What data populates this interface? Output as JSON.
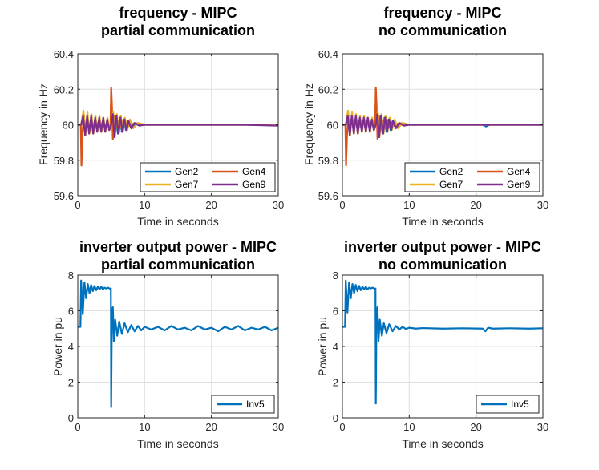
{
  "figure": {
    "background": "#ffffff"
  },
  "chart_data": [
    {
      "type": "line",
      "title": [
        "frequency - MIPC",
        "partial communication"
      ],
      "xlabel": "Time in seconds",
      "ylabel": "Frequency in Hz",
      "xlim": [
        0,
        30
      ],
      "ylim": [
        59.6,
        60.4
      ],
      "xticks": [
        0,
        10,
        20,
        30
      ],
      "yticks": [
        59.6,
        59.8,
        60,
        60.2,
        60.4
      ],
      "ytick_labels": [
        "59.6",
        "59.8",
        "60",
        "60.2",
        "60.4"
      ],
      "grid": true,
      "legend": {
        "location": "bottom-right",
        "columns": 2,
        "entries": [
          "Gen2",
          "Gen4",
          "Gen7",
          "Gen9"
        ]
      },
      "series": [
        {
          "name": "Gen2",
          "color": "#0072BD",
          "x": [
            0,
            0.5,
            0.8,
            1.1,
            1.4,
            1.7,
            2.0,
            2.3,
            2.6,
            2.9,
            3.2,
            3.5,
            3.8,
            4.1,
            4.4,
            4.7,
            5.0,
            5.2,
            5.4,
            5.7,
            6.0,
            6.3,
            6.6,
            6.9,
            7.2,
            7.5,
            8.0,
            9.0,
            10.0,
            12.0,
            15.0,
            20.0,
            25.0,
            30.0
          ],
          "values": [
            60,
            60,
            60.04,
            59.96,
            60.04,
            59.96,
            60.03,
            59.97,
            60.03,
            59.97,
            60.03,
            59.97,
            60.03,
            59.97,
            60.02,
            59.98,
            60,
            60.05,
            59.94,
            60.05,
            59.95,
            60.04,
            59.96,
            60.03,
            59.97,
            60.02,
            59.99,
            60.01,
            60,
            60,
            60,
            60,
            60,
            60
          ]
        },
        {
          "name": "Gen4",
          "color": "#D95319",
          "x": [
            0,
            0.45,
            0.55,
            0.7,
            0.9,
            1.1,
            1.4,
            1.7,
            2.0,
            2.5,
            3.0,
            4.0,
            4.9,
            5.0,
            5.1,
            5.25,
            5.4,
            5.6,
            5.9,
            6.3,
            6.8,
            7.5,
            8.5,
            10.0,
            15.0,
            20.0,
            25.0,
            30.0
          ],
          "values": [
            60,
            60,
            59.77,
            59.95,
            60.06,
            59.97,
            60.03,
            59.98,
            60.02,
            59.99,
            60.01,
            60,
            60,
            60.21,
            60.12,
            59.92,
            60.05,
            59.96,
            60.03,
            59.98,
            60.02,
            59.99,
            60.01,
            60,
            60,
            60,
            60,
            60
          ]
        },
        {
          "name": "Gen7",
          "color": "#EDB120",
          "x": [
            0,
            0.5,
            0.85,
            1.15,
            1.45,
            1.75,
            2.05,
            2.35,
            2.65,
            2.95,
            3.25,
            3.55,
            3.85,
            4.15,
            4.45,
            4.75,
            5.0,
            5.3,
            5.55,
            5.85,
            6.15,
            6.45,
            6.75,
            7.05,
            7.4,
            7.8,
            8.3,
            9.0,
            10.0,
            12.0,
            20.0,
            30.0
          ],
          "values": [
            60,
            60,
            60.08,
            59.94,
            60.07,
            59.95,
            60.06,
            59.95,
            60.05,
            59.96,
            60.05,
            59.96,
            60.04,
            59.96,
            60.04,
            59.97,
            60,
            60.07,
            59.93,
            60.06,
            59.95,
            60.05,
            59.96,
            60.04,
            59.97,
            60.03,
            59.98,
            60.01,
            60,
            60,
            60,
            60
          ]
        },
        {
          "name": "Gen9",
          "color": "#7E2F8E",
          "x": [
            0,
            0.5,
            0.8,
            1.1,
            1.4,
            1.7,
            2.0,
            2.3,
            2.6,
            2.9,
            3.2,
            3.5,
            3.8,
            4.1,
            4.4,
            4.7,
            5.0,
            5.25,
            5.5,
            5.8,
            6.1,
            6.4,
            6.7,
            7.0,
            7.3,
            7.6,
            8.0,
            8.5,
            9.2,
            10.0,
            15.0,
            20.0,
            25.0,
            30.0
          ],
          "values": [
            60,
            60,
            60.05,
            59.94,
            60.05,
            59.95,
            60.05,
            59.95,
            60.04,
            59.96,
            60.04,
            59.96,
            60.04,
            59.96,
            60.03,
            59.97,
            60,
            60.06,
            59.93,
            60.05,
            59.95,
            60.04,
            59.96,
            60.03,
            59.97,
            60.02,
            59.98,
            60.01,
            59.995,
            60,
            60,
            60,
            60,
            59.995
          ]
        }
      ]
    },
    {
      "type": "line",
      "title": [
        "frequency - MIPC",
        "no communication"
      ],
      "xlabel": "Time in seconds",
      "ylabel": "Frequency in Hz",
      "xlim": [
        0,
        30
      ],
      "ylim": [
        59.6,
        60.4
      ],
      "xticks": [
        0,
        10,
        20,
        30
      ],
      "yticks": [
        59.6,
        59.8,
        60,
        60.2,
        60.4
      ],
      "ytick_labels": [
        "59.6",
        "59.8",
        "60",
        "60.2",
        "60.4"
      ],
      "grid": true,
      "legend": {
        "location": "bottom-right",
        "columns": 2,
        "entries": [
          "Gen2",
          "Gen4",
          "Gen7",
          "Gen9"
        ]
      },
      "series": [
        {
          "name": "Gen2",
          "color": "#0072BD",
          "x": [
            0,
            0.5,
            0.8,
            1.1,
            1.4,
            1.7,
            2.0,
            2.3,
            2.6,
            2.9,
            3.2,
            3.5,
            3.8,
            4.1,
            4.4,
            4.7,
            5.0,
            5.2,
            5.4,
            5.7,
            6.0,
            6.3,
            6.6,
            6.9,
            7.2,
            7.5,
            8.0,
            9.0,
            10.0,
            15.0,
            21.0,
            21.5,
            22.0,
            30.0
          ],
          "values": [
            60,
            60,
            60.04,
            59.96,
            60.04,
            59.96,
            60.03,
            59.97,
            60.03,
            59.97,
            60.03,
            59.97,
            60.03,
            59.97,
            60.02,
            59.98,
            60,
            60.05,
            59.94,
            60.05,
            59.95,
            60.04,
            59.96,
            60.03,
            59.97,
            60.02,
            59.99,
            60.01,
            60,
            60,
            60,
            59.99,
            60,
            60
          ]
        },
        {
          "name": "Gen4",
          "color": "#D95319",
          "x": [
            0,
            0.45,
            0.55,
            0.7,
            0.9,
            1.1,
            1.4,
            1.7,
            2.0,
            2.5,
            3.0,
            4.0,
            4.9,
            5.0,
            5.1,
            5.25,
            5.4,
            5.6,
            5.9,
            6.3,
            6.8,
            7.5,
            8.5,
            10.0,
            15.0,
            20.0,
            25.0,
            30.0
          ],
          "values": [
            60,
            60,
            59.77,
            59.95,
            60.06,
            59.97,
            60.03,
            59.98,
            60.02,
            59.99,
            60.01,
            60,
            60,
            60.21,
            60.12,
            59.92,
            60.05,
            59.96,
            60.03,
            59.98,
            60.02,
            59.99,
            60.01,
            60,
            60,
            60,
            60,
            60
          ]
        },
        {
          "name": "Gen7",
          "color": "#EDB120",
          "x": [
            0,
            0.5,
            0.85,
            1.15,
            1.45,
            1.75,
            2.05,
            2.35,
            2.65,
            2.95,
            3.25,
            3.55,
            3.85,
            4.15,
            4.45,
            4.75,
            5.0,
            5.3,
            5.55,
            5.85,
            6.15,
            6.45,
            6.75,
            7.05,
            7.4,
            7.8,
            8.3,
            9.0,
            10.0,
            12.0,
            20.0,
            30.0
          ],
          "values": [
            60,
            60,
            60.08,
            59.94,
            60.07,
            59.95,
            60.06,
            59.95,
            60.05,
            59.96,
            60.05,
            59.96,
            60.04,
            59.96,
            60.04,
            59.97,
            60,
            60.07,
            59.93,
            60.06,
            59.95,
            60.05,
            59.96,
            60.04,
            59.97,
            60.03,
            59.98,
            60.01,
            60,
            60,
            60,
            60
          ]
        },
        {
          "name": "Gen9",
          "color": "#7E2F8E",
          "x": [
            0,
            0.5,
            0.8,
            1.1,
            1.4,
            1.7,
            2.0,
            2.3,
            2.6,
            2.9,
            3.2,
            3.5,
            3.8,
            4.1,
            4.4,
            4.7,
            5.0,
            5.25,
            5.5,
            5.8,
            6.1,
            6.4,
            6.7,
            7.0,
            7.3,
            7.6,
            8.0,
            8.5,
            9.2,
            10.0,
            15.0,
            20.0,
            25.0,
            30.0
          ],
          "values": [
            60,
            60,
            60.05,
            59.94,
            60.05,
            59.95,
            60.05,
            59.95,
            60.04,
            59.96,
            60.04,
            59.96,
            60.04,
            59.96,
            60.03,
            59.97,
            60,
            60.06,
            59.93,
            60.05,
            59.95,
            60.04,
            59.96,
            60.03,
            59.97,
            60.02,
            59.98,
            60.01,
            59.995,
            60,
            60,
            60,
            60,
            60
          ]
        }
      ]
    },
    {
      "type": "line",
      "title": [
        "inverter output power - MIPC",
        "partial communication"
      ],
      "xlabel": "Time in seconds",
      "ylabel": "Power in pu",
      "xlim": [
        0,
        30
      ],
      "ylim": [
        0,
        8
      ],
      "xticks": [
        0,
        10,
        20,
        30
      ],
      "yticks": [
        0,
        2,
        4,
        6,
        8
      ],
      "ytick_labels": [
        "0",
        "2",
        "4",
        "6",
        "8"
      ],
      "grid": true,
      "legend": {
        "location": "bottom-right",
        "columns": 1,
        "entries": [
          "Inv5"
        ]
      },
      "series": [
        {
          "name": "Inv5",
          "color": "#0072BD",
          "x": [
            0,
            0.4,
            0.5,
            0.75,
            1.0,
            1.25,
            1.5,
            1.75,
            2.0,
            2.25,
            2.5,
            2.75,
            3.0,
            3.25,
            3.5,
            3.75,
            4.0,
            4.25,
            4.5,
            4.75,
            4.95,
            5.0,
            5.1,
            5.25,
            5.4,
            5.6,
            5.9,
            6.2,
            6.6,
            7.0,
            7.5,
            8.0,
            8.5,
            9.0,
            9.5,
            10.0,
            11.0,
            12.0,
            13.0,
            14.0,
            15.0,
            16.0,
            17.0,
            18.0,
            19.0,
            20.0,
            21.0,
            22.0,
            23.0,
            24.0,
            25.0,
            26.0,
            27.0,
            28.0,
            29.0,
            30.0
          ],
          "values": [
            5.1,
            5.1,
            7.7,
            5.8,
            7.6,
            6.7,
            7.5,
            7.0,
            7.45,
            7.1,
            7.4,
            7.15,
            7.35,
            7.2,
            7.35,
            7.2,
            7.3,
            7.25,
            7.3,
            7.25,
            7.25,
            0.6,
            5.8,
            6.2,
            4.3,
            5.5,
            4.6,
            5.4,
            4.7,
            5.3,
            4.8,
            5.2,
            4.85,
            5.15,
            4.9,
            5.1,
            4.95,
            5.1,
            4.9,
            5.15,
            4.95,
            5.05,
            4.9,
            5.15,
            4.95,
            5.05,
            4.85,
            5.1,
            4.95,
            5.15,
            4.9,
            5.05,
            4.95,
            5.1,
            4.9,
            5.05
          ]
        }
      ]
    },
    {
      "type": "line",
      "title": [
        "inverter output power - MIPC",
        "no communication"
      ],
      "xlabel": "Time in seconds",
      "ylabel": "Power in pu",
      "xlim": [
        0,
        30
      ],
      "ylim": [
        0,
        8
      ],
      "xticks": [
        0,
        10,
        20,
        30
      ],
      "yticks": [
        0,
        2,
        4,
        6,
        8
      ],
      "ytick_labels": [
        "0",
        "2",
        "4",
        "6",
        "8"
      ],
      "grid": true,
      "legend": {
        "location": "bottom-right",
        "columns": 1,
        "entries": [
          "Inv5"
        ]
      },
      "series": [
        {
          "name": "Inv5",
          "color": "#0072BD",
          "x": [
            0,
            0.4,
            0.5,
            0.75,
            1.0,
            1.25,
            1.5,
            1.75,
            2.0,
            2.25,
            2.5,
            2.75,
            3.0,
            3.25,
            3.5,
            3.75,
            4.0,
            4.25,
            4.5,
            4.75,
            4.95,
            5.0,
            5.1,
            5.25,
            5.4,
            5.6,
            5.9,
            6.2,
            6.6,
            7.0,
            7.5,
            8.0,
            8.5,
            9.0,
            9.5,
            10.0,
            11.0,
            12.0,
            15.0,
            18.0,
            21.0,
            21.4,
            21.8,
            22.5,
            25.0,
            28.0,
            30.0
          ],
          "values": [
            5.1,
            5.1,
            7.7,
            5.9,
            7.6,
            6.7,
            7.5,
            7.0,
            7.45,
            7.1,
            7.4,
            7.15,
            7.35,
            7.2,
            7.35,
            7.2,
            7.3,
            7.25,
            7.3,
            7.25,
            7.25,
            0.8,
            5.8,
            6.2,
            4.3,
            5.5,
            4.6,
            5.3,
            4.75,
            5.25,
            4.85,
            5.15,
            4.95,
            5.1,
            4.98,
            5.05,
            5.0,
            5.03,
            5.0,
            5.02,
            5.0,
            4.85,
            5.05,
            5.0,
            5.02,
            5.0,
            5.02
          ]
        }
      ]
    }
  ]
}
